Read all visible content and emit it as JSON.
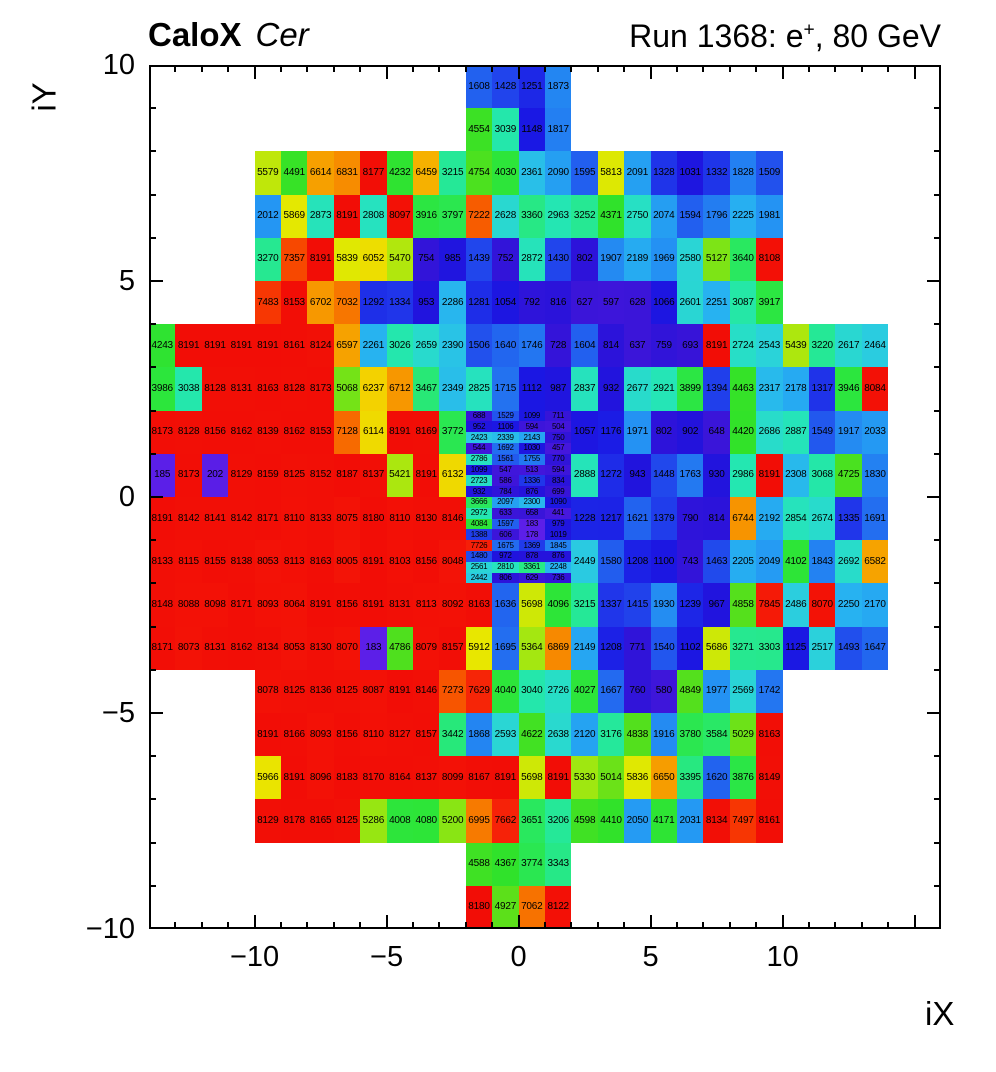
{
  "header": {
    "left_bold": "CaloX",
    "left_italic": "Cer",
    "right_prefix": "Run 1368: e",
    "right_sup": "+",
    "right_suffix": ", 80 GeV"
  },
  "axes": {
    "x_title": "iX",
    "y_title": "iY",
    "x_ticks": [
      {
        "v": -10,
        "label": "−10"
      },
      {
        "v": -5,
        "label": "−5"
      },
      {
        "v": 0,
        "label": "0"
      },
      {
        "v": 5,
        "label": "5"
      },
      {
        "v": 10,
        "label": "10"
      }
    ],
    "y_ticks": [
      {
        "v": 10,
        "label": "10"
      },
      {
        "v": 5,
        "label": "5"
      },
      {
        "v": 0,
        "label": "0"
      },
      {
        "v": -5,
        "label": "−5"
      },
      {
        "v": -10,
        "label": "−10"
      }
    ]
  },
  "palette": [
    {
      "v": 178,
      "c": "#5c1fe8"
    },
    {
      "v": 460,
      "c": "#4517dc"
    },
    {
      "v": 700,
      "c": "#3714d8"
    },
    {
      "v": 900,
      "c": "#2313dc"
    },
    {
      "v": 1150,
      "c": "#1a18e4"
    },
    {
      "v": 1350,
      "c": "#2038ea"
    },
    {
      "v": 1550,
      "c": "#2258ee"
    },
    {
      "v": 1750,
      "c": "#2377f1"
    },
    {
      "v": 2000,
      "c": "#2495f3"
    },
    {
      "v": 2250,
      "c": "#27b2f1"
    },
    {
      "v": 2500,
      "c": "#2bd0dd"
    },
    {
      "v": 2750,
      "c": "#27e0c4"
    },
    {
      "v": 3000,
      "c": "#24e7b0"
    },
    {
      "v": 3300,
      "c": "#26e88d"
    },
    {
      "v": 3600,
      "c": "#29e864"
    },
    {
      "v": 3950,
      "c": "#2ce63e"
    },
    {
      "v": 4400,
      "c": "#30e22a"
    },
    {
      "v": 4900,
      "c": "#58e01b"
    },
    {
      "v": 5350,
      "c": "#a2e711"
    },
    {
      "v": 5900,
      "c": "#e8e800"
    },
    {
      "v": 6250,
      "c": "#f3d100"
    },
    {
      "v": 6500,
      "c": "#f6ab00"
    },
    {
      "v": 6900,
      "c": "#f78600"
    },
    {
      "v": 7150,
      "c": "#f76700"
    },
    {
      "v": 7400,
      "c": "#f74200"
    },
    {
      "v": 7650,
      "c": "#f62208"
    },
    {
      "v": 8191,
      "c": "#f20d06"
    }
  ],
  "chart_data": {
    "type": "heatmap",
    "title": "CaloX Cer",
    "subtitle": "Run 1368: e+, 80 GeV",
    "xlabel": "iX",
    "ylabel": "iY",
    "xlim": [
      -14,
      16
    ],
    "ylim": [
      -10,
      10
    ],
    "z_observed_range": [
      178,
      8191
    ],
    "grid": false,
    "legend": "none",
    "rows": [
      {
        "iy_top": 10,
        "ix_start": -2,
        "values": [
          1608,
          1428,
          1251,
          1873
        ]
      },
      {
        "iy_top": 9,
        "ix_start": -2,
        "values": [
          4554,
          3039,
          1148,
          1817
        ]
      },
      {
        "iy_top": 8,
        "ix_start": -10,
        "values": [
          5579,
          4491,
          6614,
          6831,
          8177,
          4232,
          6459,
          3215,
          4754,
          4030,
          2361,
          2090,
          1595,
          5813,
          2091,
          1328,
          1031,
          1332,
          1828,
          1509
        ]
      },
      {
        "iy_top": 7,
        "ix_start": -10,
        "values": [
          2012,
          5869,
          2873,
          8191,
          2808,
          8097,
          3916,
          3797,
          7222,
          2628,
          3360,
          2963,
          3252,
          4371,
          2750,
          2074,
          1594,
          1796,
          2225,
          1981
        ]
      },
      {
        "iy_top": 6,
        "ix_start": -10,
        "values": [
          3270,
          7357,
          8191,
          5839,
          6052,
          5470,
          754,
          985,
          1439,
          752,
          2872,
          1430,
          802,
          1907,
          2189,
          1969,
          2580,
          5127,
          3640,
          8108
        ]
      },
      {
        "iy_top": 5,
        "ix_start": -10,
        "values": [
          7483,
          8153,
          6702,
          7032,
          1292,
          1334,
          953,
          2286,
          1281,
          1054,
          792,
          816,
          627,
          597,
          628,
          1066,
          2601,
          2251,
          3087,
          3917
        ]
      },
      {
        "iy_top": 4,
        "ix_start": -14,
        "values": [
          4243,
          8191,
          8191,
          8191,
          8191,
          8161,
          8124,
          6597,
          2261,
          3026,
          2659,
          2390,
          1506,
          1640,
          1746,
          728,
          1604,
          814,
          637,
          759,
          693,
          8191,
          2724,
          2543,
          5439,
          3220,
          2617,
          2464
        ]
      },
      {
        "iy_top": 3,
        "ix_start": -14,
        "values": [
          3986,
          3038,
          8128,
          8131,
          8163,
          8128,
          8173,
          5068,
          6237,
          6712,
          3467,
          2349,
          2825,
          1715,
          1112,
          987,
          2837,
          932,
          2677,
          2921,
          3899,
          1394,
          4463,
          2317,
          2178,
          1317,
          3946,
          8084
        ]
      },
      {
        "iy_top": 2,
        "ix_start": -14,
        "values": [
          8173,
          8128,
          8156,
          8162,
          8139,
          8162,
          8153,
          7128,
          6114,
          8191,
          8169,
          3772
        ]
      },
      {
        "iy_top": 2,
        "ix_start": 2,
        "values": [
          1057,
          1176,
          1971,
          802,
          902,
          648,
          4420,
          2686,
          2887,
          1549,
          1917,
          2033
        ]
      },
      {
        "iy_top": 1,
        "ix_start": -14,
        "values": [
          185,
          8173,
          202,
          8129,
          8159,
          8125,
          8152,
          8187,
          8137,
          5421,
          8191,
          6132
        ]
      },
      {
        "iy_top": 1,
        "ix_start": 2,
        "values": [
          2888,
          1272,
          943,
          1448,
          1763,
          930,
          2986,
          8191,
          2308,
          3068,
          4725,
          1830
        ]
      },
      {
        "iy_top": 0,
        "ix_start": -14,
        "values": [
          8191,
          8142,
          8141,
          8142,
          8171,
          8110,
          8133,
          8075,
          8180,
          8110,
          8130,
          8146
        ]
      },
      {
        "iy_top": 0,
        "ix_start": 2,
        "values": [
          1228,
          1217,
          1621,
          1379,
          790,
          814,
          6744,
          2192,
          2854,
          2674,
          1335,
          1691
        ]
      },
      {
        "iy_top": -1,
        "ix_start": -14,
        "values": [
          8133,
          8115,
          8155,
          8138,
          8053,
          8113,
          8163,
          8005,
          8191,
          8103,
          8156,
          8048
        ]
      },
      {
        "iy_top": -1,
        "ix_start": 2,
        "values": [
          2449,
          1580,
          1208,
          1100,
          743,
          1463,
          2205,
          2049,
          4102,
          1843,
          2692,
          6582
        ]
      },
      {
        "iy_top": -2,
        "ix_start": -14,
        "values": [
          8148,
          8088,
          8098,
          8171,
          8093,
          8064,
          8191,
          8156,
          8191,
          8131,
          8113,
          8092,
          8163,
          1636,
          5698,
          4096,
          3215,
          1337,
          1415,
          1930,
          1239,
          967,
          4858,
          7845,
          2486,
          8070,
          2250,
          2170
        ]
      },
      {
        "iy_top": -3,
        "ix_start": -14,
        "values": [
          8171,
          8073,
          8131,
          8162,
          8134,
          8053,
          8130,
          8070,
          183,
          4786,
          8079,
          8157,
          5912,
          1695,
          5364,
          6869,
          2149,
          1208,
          771,
          1540,
          1102,
          5686,
          3271,
          3303,
          1125,
          2517,
          1493,
          1647
        ]
      },
      {
        "iy_top": -4,
        "ix_start": -10,
        "values": [
          8078,
          8125,
          8136,
          8125,
          8087,
          8191,
          8146,
          7273,
          7629,
          4040,
          3040,
          2726,
          4027,
          1667,
          760,
          580,
          4849,
          1977,
          2569,
          1742
        ]
      },
      {
        "iy_top": -5,
        "ix_start": -10,
        "values": [
          8191,
          8166,
          8093,
          8156,
          8110,
          8127,
          8157,
          3442,
          1868,
          2593,
          4622,
          2638,
          2120,
          3176,
          4838,
          1916,
          3780,
          3584,
          5029,
          8163
        ]
      },
      {
        "iy_top": -6,
        "ix_start": -10,
        "values": [
          5966,
          8191,
          8096,
          8183,
          8170,
          8164,
          8137,
          8099,
          8167,
          8191,
          5698,
          8191,
          5330,
          5014,
          5836,
          6650,
          3395,
          1620,
          3876,
          8149
        ]
      },
      {
        "iy_top": -7,
        "ix_start": -10,
        "values": [
          8129,
          8178,
          8165,
          8125,
          5286,
          4008,
          4080,
          5200,
          6995,
          7662,
          3651,
          3206,
          4598,
          4410,
          2050,
          4171,
          2031,
          8134,
          7497,
          8161
        ]
      },
      {
        "iy_top": -8,
        "ix_start": -2,
        "values": [
          4588,
          4367,
          3774,
          3343
        ]
      },
      {
        "iy_top": -9,
        "ix_start": -2,
        "values": [
          8180,
          4927,
          7062,
          8122
        ]
      }
    ],
    "fine_region": {
      "ix_start": -2,
      "iy_top": 2,
      "cell_w": 1,
      "cell_h": 0.25,
      "rows": [
        [
          688,
          1529,
          1099,
          711
        ],
        [
          952,
          1106,
          594,
          504
        ],
        [
          2423,
          2339,
          2143,
          750
        ],
        [
          544,
          1692,
          1030,
          457
        ],
        [
          2786,
          1561,
          1755,
          770
        ],
        [
          1099,
          547,
          513,
          594
        ],
        [
          2723,
          586,
          1336,
          834
        ],
        [
          932,
          784,
          876,
          699
        ],
        [
          3666,
          2097,
          2300,
          1090
        ],
        [
          2972,
          633,
          658,
          441
        ],
        [
          4084,
          1597,
          183,
          979
        ],
        [
          1388,
          606,
          178,
          1019
        ],
        [
          7726,
          1675,
          1369,
          1845
        ],
        [
          1480,
          972,
          878,
          876
        ],
        [
          2561,
          2810,
          3361,
          2248
        ],
        [
          2442,
          806,
          629,
          736
        ]
      ]
    }
  }
}
